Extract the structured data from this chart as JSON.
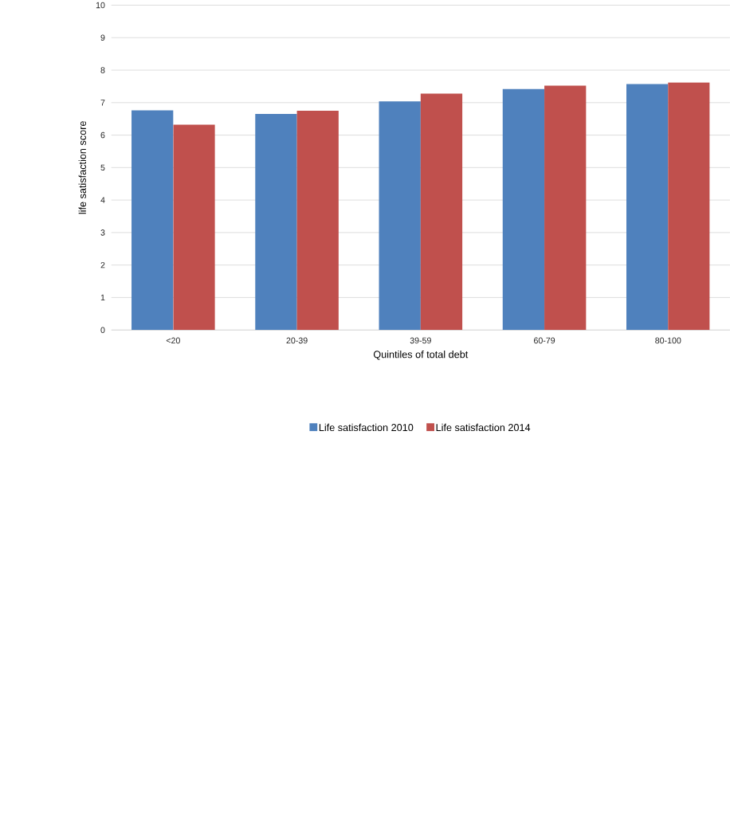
{
  "chart_data": {
    "type": "bar",
    "xlabel": "Quintiles of total debt",
    "ylabel": "life satisfaction score",
    "categories": [
      "<20",
      "20-39",
      "39-59",
      "60-79",
      "80-100"
    ],
    "series": [
      {
        "name": "Life satisfaction 2010",
        "color": "#4f81bd",
        "values": [
          6.76,
          6.65,
          7.04,
          7.42,
          7.57
        ]
      },
      {
        "name": "Life satisfaction 2014",
        "color": "#c0504d",
        "values": [
          6.32,
          6.75,
          7.28,
          7.52,
          7.62
        ]
      }
    ],
    "ylim": [
      0,
      10
    ],
    "yticks": [
      0,
      1,
      2,
      3,
      4,
      5,
      6,
      7,
      8,
      9,
      10
    ],
    "grid": "y",
    "legend": "bottom"
  }
}
